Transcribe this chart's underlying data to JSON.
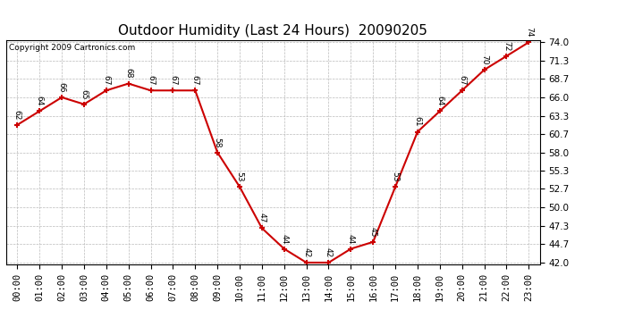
{
  "title": "Outdoor Humidity (Last 24 Hours)  20090205",
  "copyright": "Copyright 2009 Cartronics.com",
  "hours": [
    "00:00",
    "01:00",
    "02:00",
    "03:00",
    "04:00",
    "05:00",
    "06:00",
    "07:00",
    "08:00",
    "09:00",
    "10:00",
    "11:00",
    "12:00",
    "13:00",
    "14:00",
    "15:00",
    "16:00",
    "17:00",
    "18:00",
    "19:00",
    "20:00",
    "21:00",
    "22:00",
    "23:00"
  ],
  "values": [
    62,
    64,
    66,
    65,
    67,
    68,
    67,
    67,
    67,
    58,
    53,
    47,
    44,
    42,
    42,
    44,
    45,
    53,
    61,
    64,
    67,
    70,
    72,
    74
  ],
  "y_ticks": [
    42.0,
    44.7,
    47.3,
    50.0,
    52.7,
    55.3,
    58.0,
    60.7,
    63.3,
    66.0,
    68.7,
    71.3,
    74.0
  ],
  "y_min": 42.0,
  "y_max": 74.0,
  "line_color": "#cc0000",
  "marker_color": "#cc0000",
  "bg_color": "#ffffff",
  "grid_color": "#bbbbbb",
  "title_fontsize": 11,
  "tick_fontsize": 7.5,
  "annot_fontsize": 6.5,
  "copyright_fontsize": 6.5
}
